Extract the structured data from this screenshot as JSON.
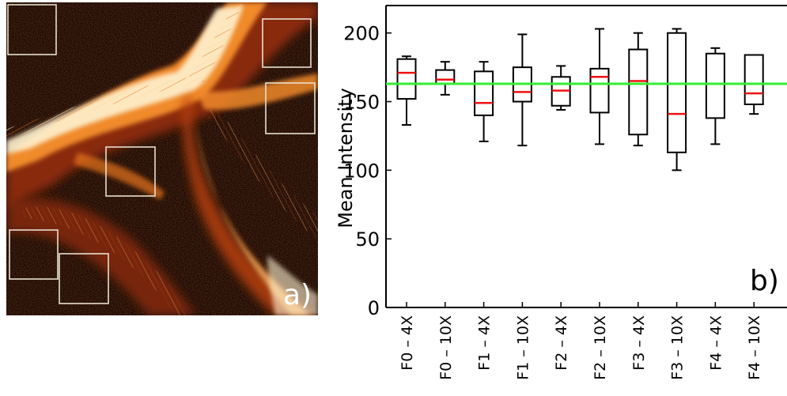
{
  "panel_a": {
    "label": "a)",
    "colors": {
      "background": "#1a0500",
      "fiber_bright": "#fff6dc",
      "fiber_mid": "#f08a2a",
      "fiber_dark": "#8a2a08",
      "roi_box": "#e8e0d0"
    }
  },
  "chart_data": {
    "type": "box",
    "panel_label": "b)",
    "ylabel": "Mean Intensity",
    "xlabel": "",
    "ylim": [
      0,
      220
    ],
    "yticks": [
      0,
      50,
      100,
      150,
      200
    ],
    "grid": false,
    "reference_line": {
      "value": 163,
      "color": "#33ee33"
    },
    "median_color": "#ee1111",
    "categories": [
      "F0 – 4X",
      "F0 – 10X",
      "F1 – 4X",
      "F1 – 10X",
      "F2 – 4X",
      "F2 – 10X",
      "F3 – 4X",
      "F3 – 10X",
      "F4 – 4X",
      "F4 – 10X"
    ],
    "boxes": [
      {
        "whisker_low": 133,
        "q1": 152,
        "median": 171,
        "q3": 181,
        "whisker_high": 183
      },
      {
        "whisker_low": 155,
        "q1": 163,
        "median": 166,
        "q3": 173,
        "whisker_high": 179
      },
      {
        "whisker_low": 121,
        "q1": 140,
        "median": 149,
        "q3": 172,
        "whisker_high": 179
      },
      {
        "whisker_low": 118,
        "q1": 150,
        "median": 157,
        "q3": 175,
        "whisker_high": 199
      },
      {
        "whisker_low": 144,
        "q1": 147,
        "median": 158,
        "q3": 168,
        "whisker_high": 176
      },
      {
        "whisker_low": 119,
        "q1": 142,
        "median": 168,
        "q3": 174,
        "whisker_high": 203
      },
      {
        "whisker_low": 118,
        "q1": 126,
        "median": 165,
        "q3": 188,
        "whisker_high": 200
      },
      {
        "whisker_low": 100,
        "q1": 113,
        "median": 141,
        "q3": 200,
        "whisker_high": 203
      },
      {
        "whisker_low": 119,
        "q1": 138,
        "median": 163,
        "q3": 185,
        "whisker_high": 189
      },
      {
        "whisker_low": 141,
        "q1": 148,
        "median": 156,
        "q3": 184,
        "whisker_high": 184
      }
    ]
  }
}
